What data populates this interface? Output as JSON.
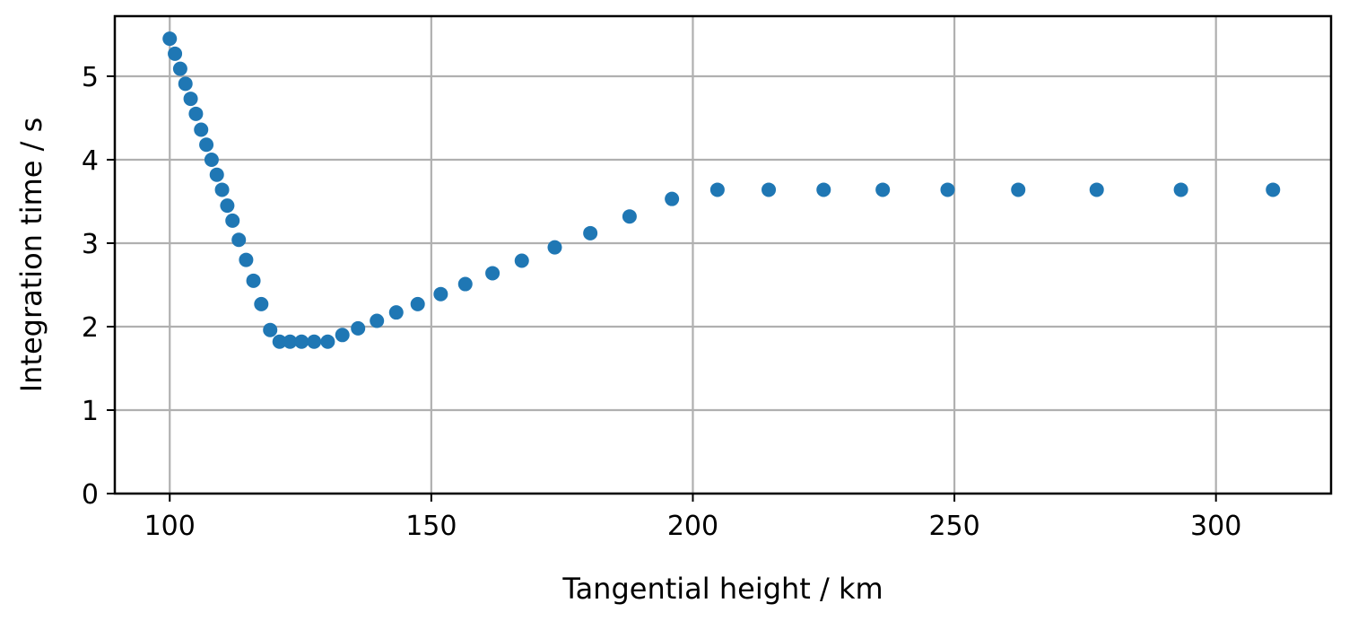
{
  "chart_data": {
    "type": "scatter",
    "xlabel": "Tangential height / km",
    "ylabel": "Integration time / s",
    "xlim": [
      89.5,
      322
    ],
    "ylim": [
      0,
      5.72
    ],
    "xticks": [
      100,
      150,
      200,
      250,
      300
    ],
    "yticks": [
      0,
      1,
      2,
      3,
      4,
      5
    ],
    "x_tick_labels": [
      "100",
      "150",
      "200",
      "250",
      "300"
    ],
    "y_tick_labels": [
      "0",
      "1",
      "2",
      "3",
      "4",
      "5"
    ],
    "grid": true,
    "marker_color": "#1f77b4",
    "series": [
      {
        "points": [
          [
            100.0,
            5.45
          ],
          [
            101.0,
            5.27
          ],
          [
            102.0,
            5.09
          ],
          [
            103.0,
            4.91
          ],
          [
            104.0,
            4.73
          ],
          [
            105.0,
            4.55
          ],
          [
            106.0,
            4.36
          ],
          [
            107.0,
            4.18
          ],
          [
            108.0,
            4.0
          ],
          [
            109.0,
            3.82
          ],
          [
            110.0,
            3.64
          ],
          [
            111.0,
            3.45
          ],
          [
            112.0,
            3.27
          ],
          [
            113.2,
            3.04
          ],
          [
            114.6,
            2.8
          ],
          [
            116.0,
            2.55
          ],
          [
            117.5,
            2.27
          ],
          [
            119.2,
            1.96
          ],
          [
            121.0,
            1.82
          ],
          [
            123.0,
            1.82
          ],
          [
            125.2,
            1.82
          ],
          [
            127.6,
            1.82
          ],
          [
            130.2,
            1.82
          ],
          [
            133.0,
            1.9
          ],
          [
            136.0,
            1.98
          ],
          [
            139.6,
            2.07
          ],
          [
            143.3,
            2.17
          ],
          [
            147.4,
            2.27
          ],
          [
            151.8,
            2.39
          ],
          [
            156.5,
            2.51
          ],
          [
            161.7,
            2.64
          ],
          [
            167.3,
            2.79
          ],
          [
            173.6,
            2.95
          ],
          [
            180.4,
            3.12
          ],
          [
            187.9,
            3.32
          ],
          [
            196.0,
            3.53
          ],
          [
            204.7,
            3.64
          ],
          [
            214.5,
            3.64
          ],
          [
            225.0,
            3.64
          ],
          [
            236.3,
            3.64
          ],
          [
            248.7,
            3.64
          ],
          [
            262.2,
            3.64
          ],
          [
            277.2,
            3.64
          ],
          [
            293.3,
            3.64
          ],
          [
            310.9,
            3.64
          ]
        ]
      }
    ]
  }
}
